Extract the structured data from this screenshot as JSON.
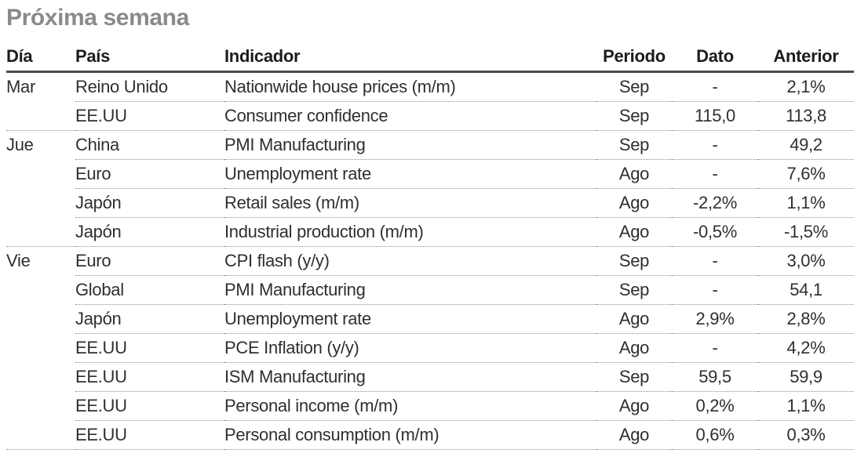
{
  "title": "Próxima semana",
  "colors": {
    "title_text": "#8a8a8a",
    "header_text": "#1c1c1b",
    "body_text": "#2f2f2e",
    "header_rule": "#4a4a49",
    "dotted_rule": "#8c8c8c"
  },
  "table": {
    "columns": {
      "dia": "Día",
      "pais": "País",
      "indicador": "Indicador",
      "periodo": "Periodo",
      "dato": "Dato",
      "anterior": "Anterior"
    },
    "rows": [
      {
        "dia": "Mar",
        "pais": "Reino Unido",
        "indicador": "Nationwide house prices (m/m)",
        "periodo": "Sep",
        "dato": "-",
        "anterior": "2,1%",
        "group_end": false
      },
      {
        "dia": "",
        "pais": "EE.UU",
        "indicador": "Consumer confidence",
        "periodo": "Sep",
        "dato": "115,0",
        "anterior": "113,8",
        "group_end": true
      },
      {
        "dia": "Jue",
        "pais": "China",
        "indicador": "PMI Manufacturing",
        "periodo": "Sep",
        "dato": "-",
        "anterior": "49,2",
        "group_end": false
      },
      {
        "dia": "",
        "pais": "Euro",
        "indicador": "Unemployment rate",
        "periodo": "Ago",
        "dato": "-",
        "anterior": "7,6%",
        "group_end": false
      },
      {
        "dia": "",
        "pais": "Japón",
        "indicador": "Retail sales (m/m)",
        "periodo": "Ago",
        "dato": "-2,2%",
        "anterior": "1,1%",
        "group_end": false
      },
      {
        "dia": "",
        "pais": "Japón",
        "indicador": "Industrial production (m/m)",
        "periodo": "Ago",
        "dato": "-0,5%",
        "anterior": "-1,5%",
        "group_end": true
      },
      {
        "dia": "Vie",
        "pais": "Euro",
        "indicador": "CPI flash (y/y)",
        "periodo": "Sep",
        "dato": "-",
        "anterior": "3,0%",
        "group_end": false
      },
      {
        "dia": "",
        "pais": "Global",
        "indicador": "PMI Manufacturing",
        "periodo": "Sep",
        "dato": "-",
        "anterior": "54,1",
        "group_end": false
      },
      {
        "dia": "",
        "pais": "Japón",
        "indicador": "Unemployment rate",
        "periodo": "Ago",
        "dato": "2,9%",
        "anterior": "2,8%",
        "group_end": false
      },
      {
        "dia": "",
        "pais": "EE.UU",
        "indicador": "PCE Inflation (y/y)",
        "periodo": "Ago",
        "dato": "-",
        "anterior": "4,2%",
        "group_end": false
      },
      {
        "dia": "",
        "pais": "EE.UU",
        "indicador": "ISM Manufacturing",
        "periodo": "Sep",
        "dato": "59,5",
        "anterior": "59,9",
        "group_end": false
      },
      {
        "dia": "",
        "pais": "EE.UU",
        "indicador": "Personal income (m/m)",
        "periodo": "Ago",
        "dato": "0,2%",
        "anterior": "1,1%",
        "group_end": false
      },
      {
        "dia": "",
        "pais": "EE.UU",
        "indicador": "Personal consumption (m/m)",
        "periodo": "Ago",
        "dato": "0,6%",
        "anterior": "0,3%",
        "group_end": true
      }
    ]
  }
}
